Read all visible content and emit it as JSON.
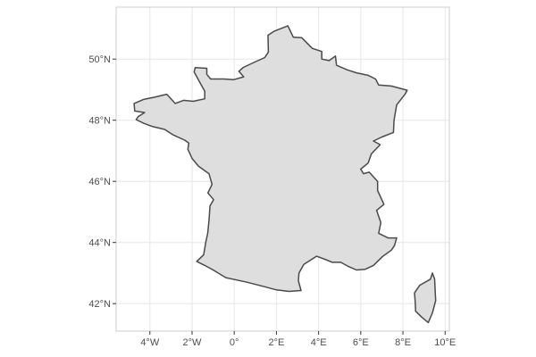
{
  "map": {
    "x_ticks": [
      {
        "lon": -4,
        "label": "4°W"
      },
      {
        "lon": -2,
        "label": "2°W"
      },
      {
        "lon": 0,
        "label": "0°"
      },
      {
        "lon": 2,
        "label": "2°E"
      },
      {
        "lon": 4,
        "label": "4°E"
      },
      {
        "lon": 6,
        "label": "6°E"
      },
      {
        "lon": 8,
        "label": "8°E"
      },
      {
        "lon": 10,
        "label": "10°E"
      }
    ],
    "y_ticks": [
      {
        "lat": 42,
        "label": "42°N"
      },
      {
        "lat": 44,
        "label": "44°N"
      },
      {
        "lat": 46,
        "label": "46°N"
      },
      {
        "lat": 48,
        "label": "48°N"
      },
      {
        "lat": 50,
        "label": "50°N"
      }
    ],
    "lon_range": [
      -5.6,
      10.2
    ],
    "lat_range": [
      41.1,
      51.7
    ],
    "colors": {
      "land_fill": "#dedede",
      "border": "#4a4a4a",
      "grid": "#e6e6e6",
      "panel_border": "#cccccc"
    },
    "regions": [
      {
        "name": "mainland",
        "coords": [
          [
            2.54,
            51.09
          ],
          [
            1.88,
            50.91
          ],
          [
            1.6,
            50.78
          ],
          [
            1.62,
            50.23
          ],
          [
            1.45,
            50.05
          ],
          [
            1.02,
            49.92
          ],
          [
            0.43,
            49.73
          ],
          [
            0.22,
            49.6
          ],
          [
            0.45,
            49.42
          ],
          [
            -0.02,
            49.33
          ],
          [
            -0.5,
            49.35
          ],
          [
            -1.12,
            49.35
          ],
          [
            -1.3,
            49.5
          ],
          [
            -1.3,
            49.7
          ],
          [
            -1.85,
            49.72
          ],
          [
            -1.9,
            49.58
          ],
          [
            -1.6,
            49.2
          ],
          [
            -1.4,
            48.95
          ],
          [
            -1.4,
            48.7
          ],
          [
            -1.95,
            48.62
          ],
          [
            -2.4,
            48.65
          ],
          [
            -2.8,
            48.55
          ],
          [
            -3.2,
            48.85
          ],
          [
            -3.8,
            48.75
          ],
          [
            -4.3,
            48.68
          ],
          [
            -4.75,
            48.55
          ],
          [
            -4.72,
            48.3
          ],
          [
            -4.25,
            48.25
          ],
          [
            -4.55,
            48.12
          ],
          [
            -4.65,
            48.02
          ],
          [
            -4.3,
            47.9
          ],
          [
            -3.9,
            47.8
          ],
          [
            -3.3,
            47.7
          ],
          [
            -2.9,
            47.52
          ],
          [
            -2.35,
            47.35
          ],
          [
            -2.15,
            47.25
          ],
          [
            -2.2,
            47.05
          ],
          [
            -2.0,
            46.75
          ],
          [
            -1.7,
            46.5
          ],
          [
            -1.2,
            46.25
          ],
          [
            -1.05,
            45.9
          ],
          [
            -1.25,
            45.62
          ],
          [
            -0.98,
            45.4
          ],
          [
            -1.15,
            45.2
          ],
          [
            -1.2,
            44.7
          ],
          [
            -1.26,
            44.3
          ],
          [
            -1.35,
            44.0
          ],
          [
            -1.45,
            43.6
          ],
          [
            -1.78,
            43.38
          ],
          [
            -1.4,
            43.25
          ],
          [
            -1.0,
            43.1
          ],
          [
            -0.4,
            42.85
          ],
          [
            0.6,
            42.7
          ],
          [
            1.45,
            42.55
          ],
          [
            2.0,
            42.45
          ],
          [
            2.6,
            42.4
          ],
          [
            3.17,
            42.43
          ],
          [
            3.04,
            42.75
          ],
          [
            3.07,
            43.0
          ],
          [
            3.3,
            43.28
          ],
          [
            3.9,
            43.55
          ],
          [
            4.3,
            43.45
          ],
          [
            4.65,
            43.35
          ],
          [
            5.05,
            43.35
          ],
          [
            5.4,
            43.22
          ],
          [
            5.8,
            43.1
          ],
          [
            6.2,
            43.12
          ],
          [
            6.6,
            43.25
          ],
          [
            7.05,
            43.55
          ],
          [
            7.45,
            43.75
          ],
          [
            7.6,
            43.9
          ],
          [
            7.7,
            44.15
          ],
          [
            7.3,
            44.15
          ],
          [
            6.85,
            44.3
          ],
          [
            6.95,
            44.65
          ],
          [
            6.75,
            45.05
          ],
          [
            7.1,
            45.25
          ],
          [
            6.8,
            45.7
          ],
          [
            6.8,
            46.0
          ],
          [
            6.4,
            46.3
          ],
          [
            6.13,
            46.25
          ],
          [
            6.0,
            46.4
          ],
          [
            6.35,
            46.6
          ],
          [
            6.5,
            46.9
          ],
          [
            6.92,
            47.2
          ],
          [
            6.6,
            47.32
          ],
          [
            7.0,
            47.45
          ],
          [
            7.55,
            47.6
          ],
          [
            7.58,
            48.0
          ],
          [
            7.7,
            48.5
          ],
          [
            8.1,
            48.85
          ],
          [
            8.2,
            48.98
          ],
          [
            7.45,
            49.12
          ],
          [
            6.85,
            49.15
          ],
          [
            6.7,
            49.35
          ],
          [
            6.35,
            49.47
          ],
          [
            5.8,
            49.55
          ],
          [
            5.35,
            49.65
          ],
          [
            4.85,
            49.8
          ],
          [
            4.8,
            50.1
          ],
          [
            4.5,
            49.95
          ],
          [
            4.15,
            50.0
          ],
          [
            4.15,
            50.25
          ],
          [
            3.7,
            50.35
          ],
          [
            3.2,
            50.7
          ],
          [
            2.8,
            50.72
          ]
        ]
      },
      {
        "name": "corsica",
        "coords": [
          [
            9.4,
            43.0
          ],
          [
            9.5,
            42.8
          ],
          [
            9.55,
            42.1
          ],
          [
            9.4,
            41.7
          ],
          [
            9.2,
            41.38
          ],
          [
            8.9,
            41.55
          ],
          [
            8.6,
            41.75
          ],
          [
            8.58,
            42.05
          ],
          [
            8.55,
            42.35
          ],
          [
            8.8,
            42.6
          ],
          [
            9.3,
            42.8
          ]
        ]
      }
    ]
  }
}
